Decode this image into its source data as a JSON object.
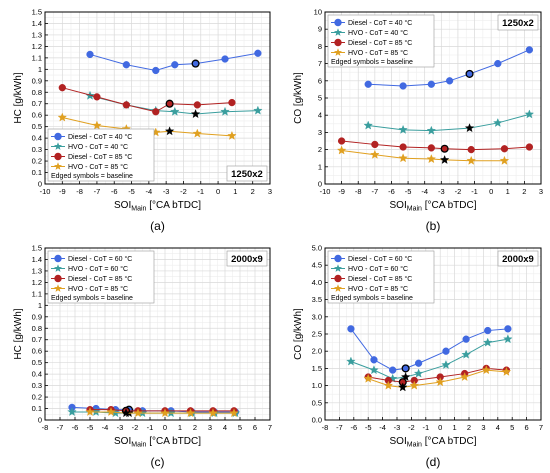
{
  "chart_data": [
    {
      "type": "line",
      "panel_label": "(a)",
      "config_label": "1250x2",
      "ylabel": "HC [g/kWh]",
      "xlabel_main": "SOI",
      "xlabel_sub": "Main",
      "xlabel_tail": " [°CA bTDC]",
      "xlim": [
        -10,
        3
      ],
      "xticks": [
        -10,
        -9,
        -8,
        -7,
        -6,
        -5,
        -4,
        -3,
        -2,
        -1,
        0,
        1,
        2,
        3
      ],
      "ylim": [
        0,
        1.5
      ],
      "yticks": [
        0,
        0.1,
        0.2,
        0.3,
        0.4,
        0.5,
        0.6,
        0.7,
        0.8,
        0.9,
        1.0,
        1.1,
        1.2,
        1.3,
        1.4,
        1.5
      ],
      "ytick_labels": [
        "0",
        "0.1",
        "0.2",
        "0.3",
        "0.4",
        "0.5",
        "0.6",
        "0.7",
        "0.8",
        "0.9",
        "1",
        "1.1",
        "1.2",
        "1.3",
        "1.4",
        "1.5"
      ],
      "legend_position": "bottom-left",
      "legend_note": "Edged symbols = baseline",
      "config_position": "bottom-right",
      "series": [
        {
          "name": "Diesel - CoT = 40 °C",
          "marker": "circle",
          "color": "#4169e1",
          "x": [
            -7.4,
            -5.3,
            -3.6,
            -2.5,
            -1.3,
            0.4,
            2.3
          ],
          "y": [
            1.13,
            1.04,
            0.99,
            1.04,
            1.05,
            1.09,
            1.14
          ],
          "baseline_index": 4
        },
        {
          "name": "HVO - CoT = 40 °C",
          "marker": "star",
          "color": "#3a9e9e",
          "x": [
            -7.4,
            -5.3,
            -3.6,
            -2.5,
            -1.3,
            0.4,
            2.3
          ],
          "y": [
            0.77,
            0.69,
            0.64,
            0.63,
            0.61,
            0.63,
            0.64
          ],
          "baseline_index": 4
        },
        {
          "name": "Diesel - CoT = 85 °C",
          "marker": "circle",
          "color": "#b22222",
          "x": [
            -9.0,
            -7.0,
            -5.3,
            -3.6,
            -2.8,
            -1.2,
            0.8
          ],
          "y": [
            0.84,
            0.76,
            0.69,
            0.63,
            0.7,
            0.69,
            0.71
          ],
          "baseline_index": 4
        },
        {
          "name": "HVO - CoT = 85 °C",
          "marker": "star",
          "color": "#e0a020",
          "x": [
            -9.0,
            -7.0,
            -5.3,
            -3.6,
            -2.8,
            -1.2,
            0.8
          ],
          "y": [
            0.58,
            0.51,
            0.48,
            0.45,
            0.46,
            0.44,
            0.42
          ],
          "baseline_index": 4
        }
      ]
    },
    {
      "type": "line",
      "panel_label": "(b)",
      "config_label": "1250x2",
      "ylabel": "CO [g/kWh]",
      "xlabel_main": "SOI",
      "xlabel_sub": "Main",
      "xlabel_tail": " [°CA bTDC]",
      "xlim": [
        -10,
        3
      ],
      "xticks": [
        -10,
        -9,
        -8,
        -7,
        -6,
        -5,
        -4,
        -3,
        -2,
        -1,
        0,
        1,
        2,
        3
      ],
      "ylim": [
        0,
        10
      ],
      "yticks": [
        0,
        1,
        2,
        3,
        4,
        5,
        6,
        7,
        8,
        9,
        10
      ],
      "ytick_labels": [
        "0",
        "1",
        "2",
        "3",
        "4",
        "5",
        "6",
        "7",
        "8",
        "9",
        "10"
      ],
      "legend_position": "top-left",
      "legend_note": "Edged symbols = baseline",
      "config_position": "top-right",
      "series": [
        {
          "name": "Diesel - CoT = 40 °C",
          "marker": "circle",
          "color": "#4169e1",
          "x": [
            -7.4,
            -5.3,
            -3.6,
            -2.5,
            -1.3,
            0.4,
            2.3
          ],
          "y": [
            5.8,
            5.7,
            5.8,
            6.0,
            6.4,
            7.0,
            7.8
          ],
          "baseline_index": 4
        },
        {
          "name": "HVO - CoT = 40 °C",
          "marker": "star",
          "color": "#3a9e9e",
          "x": [
            -7.4,
            -5.3,
            -3.6,
            -1.3,
            0.4,
            2.3
          ],
          "y": [
            3.4,
            3.15,
            3.1,
            3.25,
            3.55,
            4.05
          ],
          "baseline_index": 3
        },
        {
          "name": "Diesel - CoT = 85 °C",
          "marker": "circle",
          "color": "#b22222",
          "x": [
            -9.0,
            -7.0,
            -5.3,
            -3.6,
            -2.8,
            -1.2,
            0.8,
            2.3
          ],
          "y": [
            2.5,
            2.3,
            2.15,
            2.1,
            2.05,
            2.0,
            2.05,
            2.15
          ],
          "baseline_index": 4
        },
        {
          "name": "HVO - CoT = 85 °C",
          "marker": "star",
          "color": "#e0a020",
          "x": [
            -9.0,
            -7.0,
            -5.3,
            -3.6,
            -2.8,
            -1.2,
            0.8
          ],
          "y": [
            1.95,
            1.7,
            1.5,
            1.45,
            1.4,
            1.35,
            1.35
          ],
          "baseline_index": 4
        }
      ]
    },
    {
      "type": "line",
      "panel_label": "(c)",
      "config_label": "2000x9",
      "ylabel": "HC [g/kWh]",
      "xlabel_main": "SOI",
      "xlabel_sub": "Main",
      "xlabel_tail": " [°CA bTDC]",
      "xlim": [
        -8,
        7
      ],
      "xticks": [
        -8,
        -7,
        -6,
        -5,
        -4,
        -3,
        -2,
        -1,
        0,
        1,
        2,
        3,
        4,
        5,
        6,
        7
      ],
      "ylim": [
        0,
        1.5
      ],
      "yticks": [
        0,
        0.1,
        0.2,
        0.3,
        0.4,
        0.5,
        0.6,
        0.7,
        0.8,
        0.9,
        1.0,
        1.1,
        1.2,
        1.3,
        1.4,
        1.5
      ],
      "ytick_labels": [
        "0",
        "0.1",
        "0.2",
        "0.3",
        "0.4",
        "0.5",
        "0.6",
        "0.7",
        "0.8",
        "0.9",
        "1",
        "1.1",
        "1.2",
        "1.3",
        "1.4",
        "1.5"
      ],
      "legend_position": "top-left",
      "legend_note": "Edged symbols = baseline",
      "config_position": "top-right",
      "series": [
        {
          "name": "Diesel - CoT = 60 °C",
          "marker": "circle",
          "color": "#4169e1",
          "x": [
            -6.2,
            -4.6,
            -3.3,
            -2.4,
            -1.5,
            0.4,
            1.8,
            3.3,
            4.7
          ],
          "y": [
            0.11,
            0.1,
            0.09,
            0.09,
            0.08,
            0.08,
            0.07,
            0.07,
            0.07
          ],
          "baseline_index": 3
        },
        {
          "name": "HVO - CoT = 60 °C",
          "marker": "star",
          "color": "#3a9e9e",
          "x": [
            -6.2,
            -4.6,
            -3.3,
            -2.4,
            -1.5,
            0.4,
            1.8,
            3.3,
            4.7
          ],
          "y": [
            0.07,
            0.07,
            0.06,
            0.06,
            0.06,
            0.06,
            0.06,
            0.06,
            0.06
          ],
          "baseline_index": 3
        },
        {
          "name": "Diesel - CoT = 85 °C",
          "marker": "circle",
          "color": "#b22222",
          "x": [
            -5.0,
            -3.6,
            -2.6,
            -1.8,
            0.0,
            1.7,
            3.2,
            4.6
          ],
          "y": [
            0.09,
            0.09,
            0.08,
            0.08,
            0.08,
            0.08,
            0.08,
            0.08
          ],
          "baseline_index": 2
        },
        {
          "name": "HVO - CoT = 85 °C",
          "marker": "star",
          "color": "#e0a020",
          "x": [
            -5.0,
            -3.6,
            -2.6,
            -1.8,
            0.0,
            1.7,
            3.2,
            4.6
          ],
          "y": [
            0.07,
            0.07,
            0.06,
            0.06,
            0.06,
            0.06,
            0.06,
            0.06
          ],
          "baseline_index": 2
        }
      ]
    },
    {
      "type": "line",
      "panel_label": "(d)",
      "config_label": "2000x9",
      "ylabel": "CO [g/kWh]",
      "xlabel_main": "SOI",
      "xlabel_sub": "Main",
      "xlabel_tail": " [°CA bTDC]",
      "xlim": [
        -8,
        7
      ],
      "xticks": [
        -8,
        -7,
        -6,
        -5,
        -4,
        -3,
        -2,
        -1,
        0,
        1,
        2,
        3,
        4,
        5,
        6,
        7
      ],
      "ylim": [
        0,
        5
      ],
      "yticks": [
        0,
        0.5,
        1.0,
        1.5,
        2.0,
        2.5,
        3.0,
        3.5,
        4.0,
        4.5,
        5.0
      ],
      "ytick_labels": [
        "0.0",
        "0.5",
        "1.0",
        "1.5",
        "2.0",
        "2.5",
        "3.0",
        "3.5",
        "4.0",
        "4.5",
        "5.0"
      ],
      "legend_position": "top-left",
      "legend_note": "Edged symbols = baseline",
      "config_position": "top-right",
      "series": [
        {
          "name": "Diesel - CoT = 60 °C",
          "marker": "circle",
          "color": "#4169e1",
          "x": [
            -6.2,
            -4.6,
            -3.3,
            -2.4,
            -1.5,
            0.4,
            1.8,
            3.3,
            4.7
          ],
          "y": [
            2.65,
            1.75,
            1.45,
            1.5,
            1.65,
            2.0,
            2.35,
            2.6,
            2.65
          ],
          "baseline_index": 3
        },
        {
          "name": "HVO - CoT = 60 °C",
          "marker": "star",
          "color": "#3a9e9e",
          "x": [
            -6.2,
            -4.6,
            -3.3,
            -2.4,
            -1.5,
            0.4,
            1.8,
            3.3,
            4.7
          ],
          "y": [
            1.7,
            1.45,
            1.2,
            1.25,
            1.35,
            1.6,
            1.9,
            2.25,
            2.35
          ],
          "baseline_index": 3
        },
        {
          "name": "Diesel - CoT = 85 °C",
          "marker": "circle",
          "color": "#b22222",
          "x": [
            -5.0,
            -3.6,
            -2.6,
            -1.8,
            0.0,
            1.7,
            3.2,
            4.6
          ],
          "y": [
            1.25,
            1.15,
            1.1,
            1.15,
            1.25,
            1.35,
            1.5,
            1.45
          ],
          "baseline_index": 2
        },
        {
          "name": "HVO - CoT = 85 °C",
          "marker": "star",
          "color": "#e0a020",
          "x": [
            -5.0,
            -3.6,
            -2.6,
            -1.8,
            0.0,
            1.7,
            3.2,
            4.6
          ],
          "y": [
            1.2,
            1.0,
            0.95,
            1.0,
            1.1,
            1.25,
            1.45,
            1.4
          ],
          "baseline_index": 2
        }
      ]
    }
  ]
}
